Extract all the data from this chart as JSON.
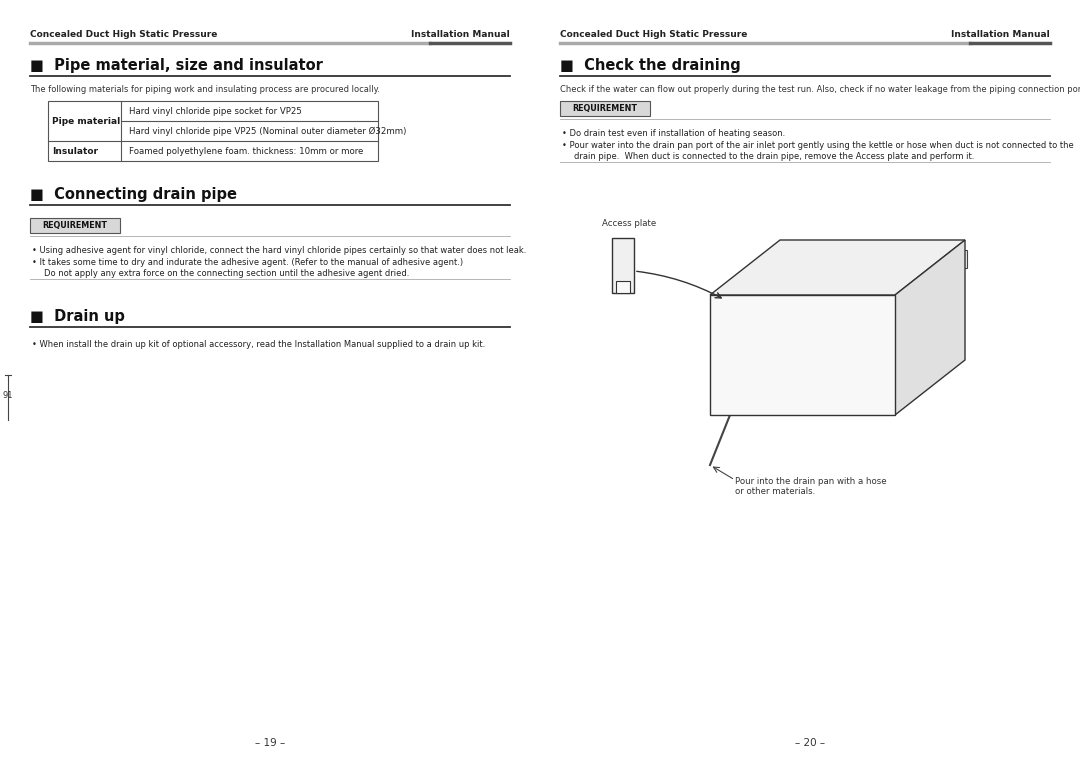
{
  "bg_color": "#ffffff",
  "header_left": "Concealed Duct High Static Pressure",
  "header_right": "Installation Manual",
  "section1_title": "■  Pipe material, size and insulator",
  "section1_intro": "The following materials for piping work and insulating process are procured locally.",
  "table_row1_col1": "Pipe material",
  "table_row1_val1": "Hard vinyl chloride pipe socket for VP25",
  "table_row1_val2": "Hard vinyl chloride pipe VP25 (Nominal outer diameter Ø32mm)",
  "table_row2_col1": "Insulator",
  "table_row2_val1": "Foamed polyethylene foam. thickness: 10mm or more",
  "section2_title": "■  Connecting drain pipe",
  "requirement_label": "REQUIREMENT",
  "section2_bullet1": "Using adhesive agent for vinyl chloride, connect the hard vinyl chloride pipes certainly so that water does not leak.",
  "section2_bullet2a": "It takes some time to dry and indurate the adhesive agent. (Refer to the manual of adhesive agent.)",
  "section2_bullet2b": "Do not apply any extra force on the connecting section until the adhesive agent dried.",
  "section3_title": "■  Drain up",
  "section3_bullet": "When install the drain up kit of optional accessory, read the Installation Manual supplied to a drain up kit.",
  "section4_title": "■  Check the draining",
  "section4_intro": "Check if the water can flow out properly during the test run. Also, check if no water leakage from the piping connection port.",
  "requirement_label2": "REQUIREMENT",
  "section4_bullet1": "Do drain test even if installation of heating season.",
  "section4_bullet2a": "Pour water into the drain pan port of the air inlet port gently using the kettle or hose when duct is not connected to the",
  "section4_bullet2b": "drain pipe.  When duct is connected to the drain pipe, remove the Access plate and perform it.",
  "access_plate_label": "Access plate",
  "pour_label": "Pour into the drain pan with a hose\nor other materials.",
  "page_left": "– 19 –",
  "page_right": "– 20 –",
  "side_text": "91"
}
